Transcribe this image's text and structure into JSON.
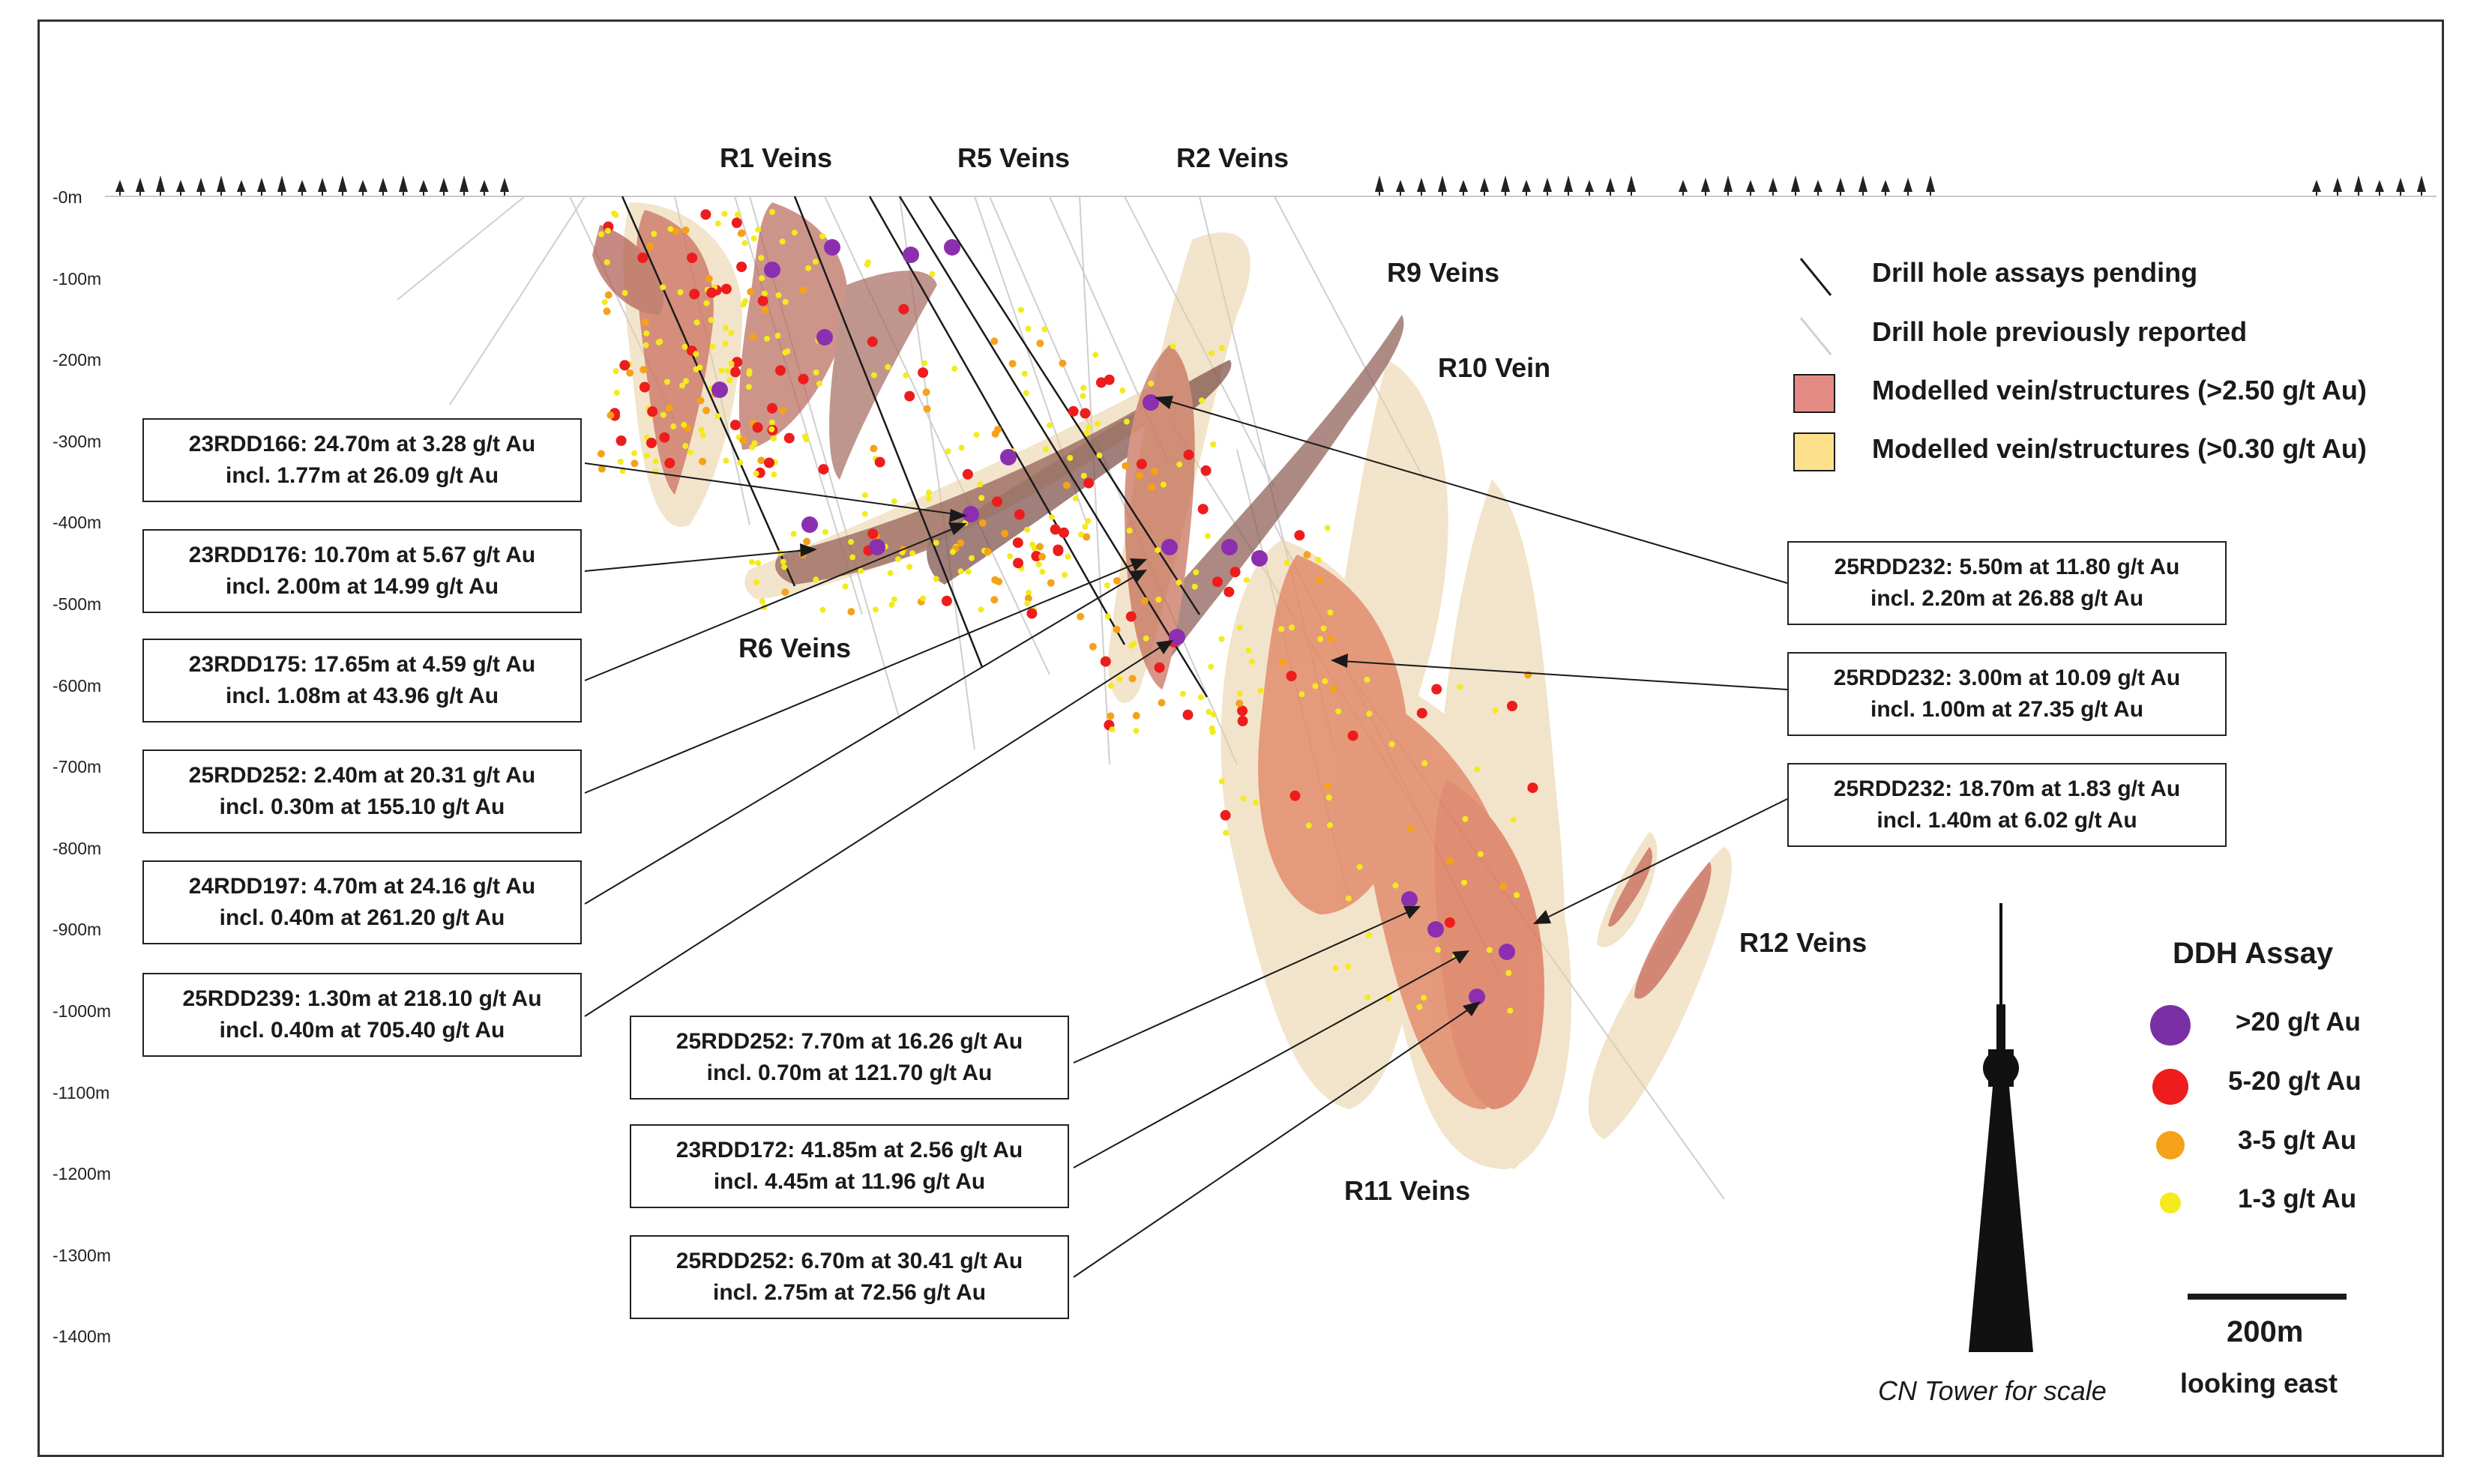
{
  "depth_axis": [
    "-0m",
    "-100m",
    "-200m",
    "-300m",
    "-400m",
    "-500m",
    "-600m",
    "-700m",
    "-800m",
    "-900m",
    "-1000m",
    "-1100m",
    "-1200m",
    "-1300m",
    "-1400m"
  ],
  "vein_labels": {
    "r1": "R1 Veins",
    "r5": "R5 Veins",
    "r2": "R2 Veins",
    "r9": "R9 Veins",
    "r10": "R10 Vein",
    "r6": "R6 Veins",
    "r12": "R12 Veins",
    "r11": "R11 Veins"
  },
  "legend": {
    "pending": "Drill hole assays pending",
    "previous": "Drill hole previously reported",
    "high_grade": "Modelled vein/structures (>2.50 g/t Au)",
    "low_grade": "Modelled vein/structures (>0.30 g/t Au)",
    "colors": {
      "high_grade": "#e48a84",
      "low_grade": "#fde08c"
    }
  },
  "assay_legend": {
    "title": "DDH Assay",
    "items": [
      {
        "label": ">20 g/t Au",
        "color": "#7b2fa5"
      },
      {
        "label": "5-20 g/t Au",
        "color": "#ee1c1c"
      },
      {
        "label": "3-5 g/t Au",
        "color": "#f5a21a"
      },
      {
        "label": "1-3 g/t Au",
        "color": "#f4ea1c"
      }
    ]
  },
  "scale": {
    "bar_label": "200m",
    "direction": "looking east",
    "tower_caption": "CN Tower for scale"
  },
  "callouts_left": [
    {
      "line1": "23RDD166: 24.70m at 3.28 g/t Au",
      "line2": "incl. 1.77m at 26.09 g/t Au"
    },
    {
      "line1": "23RDD176: 10.70m at 5.67 g/t Au",
      "line2": "incl. 2.00m at 14.99 g/t Au"
    },
    {
      "line1": "23RDD175: 17.65m at 4.59 g/t Au",
      "line2": "incl. 1.08m at 43.96 g/t Au"
    },
    {
      "line1": "25RDD252: 2.40m at 20.31 g/t Au",
      "line2": "incl. 0.30m at 155.10 g/t Au"
    },
    {
      "line1": "24RDD197: 4.70m at 24.16 g/t Au",
      "line2": "incl. 0.40m at 261.20 g/t Au"
    },
    {
      "line1": "25RDD239: 1.30m at 218.10 g/t Au",
      "line2": "incl. 0.40m at 705.40 g/t Au"
    }
  ],
  "callouts_bottom": [
    {
      "line1": "25RDD252: 7.70m at 16.26 g/t Au",
      "line2": "incl. 0.70m at 121.70 g/t Au"
    },
    {
      "line1": "23RDD172: 41.85m at 2.56 g/t Au",
      "line2": "incl. 4.45m at 11.96 g/t Au"
    },
    {
      "line1": "25RDD252: 6.70m at 30.41 g/t Au",
      "line2": "incl. 2.75m at 72.56 g/t Au"
    }
  ],
  "callouts_right": [
    {
      "line1": "25RDD232: 5.50m at 11.80 g/t Au",
      "line2": "incl. 2.20m at 26.88 g/t Au"
    },
    {
      "line1": "25RDD232: 3.00m at 10.09 g/t Au",
      "line2": "incl. 1.00m at 27.35 g/t Au"
    },
    {
      "line1": "25RDD232: 18.70m at 1.83 g/t Au",
      "line2": "incl. 1.40m at 6.02 g/t Au"
    }
  ]
}
